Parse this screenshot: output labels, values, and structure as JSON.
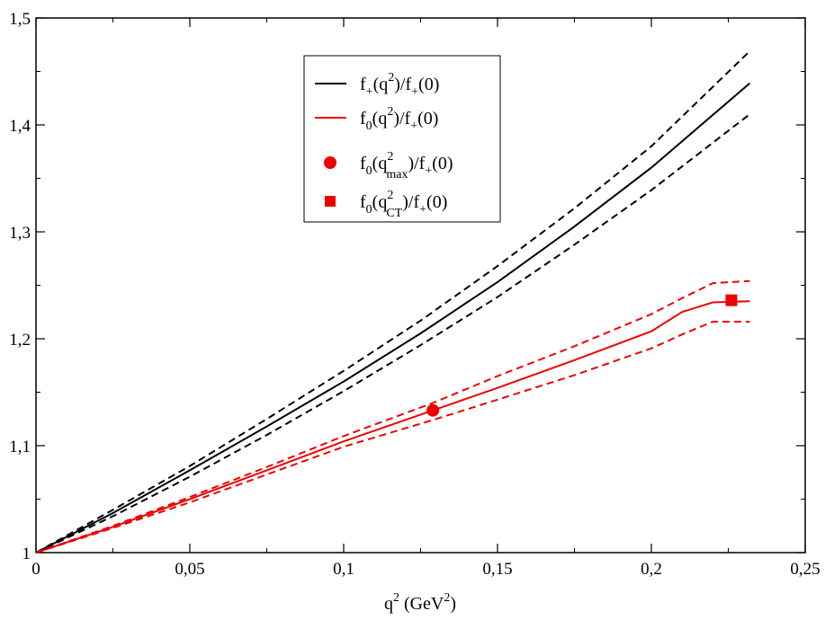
{
  "chart_data": {
    "type": "line",
    "title": "",
    "xlabel": {
      "base": "q",
      "sup": "2",
      "mid": " (GeV",
      "sup2": "2",
      "end": ")"
    },
    "ylabel": "",
    "xlim": [
      0,
      0.25
    ],
    "ylim": [
      1,
      1.5
    ],
    "xticks": [
      0,
      0.05,
      0.1,
      0.15,
      0.2,
      0.25
    ],
    "xtick_labels": [
      "0",
      "0,05",
      "0,1",
      "0,15",
      "0,2",
      "0,25"
    ],
    "yticks": [
      1,
      1.1,
      1.2,
      1.3,
      1.4,
      1.5
    ],
    "ytick_labels": [
      "1",
      "1,1",
      "1,2",
      "1,3",
      "1,4",
      "1,5"
    ],
    "x_minor_ticks": [
      0.025,
      0.075,
      0.125,
      0.175,
      0.225
    ],
    "y_minor_ticks": [
      1.05,
      1.15,
      1.25,
      1.35,
      1.45
    ],
    "legend_position": "top-center",
    "series": [
      {
        "name": "f+ central",
        "color": "#000000",
        "dash": "none",
        "x": [
          0,
          0.025,
          0.05,
          0.075,
          0.1,
          0.125,
          0.15,
          0.175,
          0.2,
          0.232
        ],
        "y": [
          1,
          1.037,
          1.077,
          1.118,
          1.16,
          1.205,
          1.253,
          1.305,
          1.36,
          1.439
        ]
      },
      {
        "name": "f+ upper",
        "color": "#000000",
        "dash": "dashed",
        "x": [
          0,
          0.025,
          0.05,
          0.075,
          0.1,
          0.125,
          0.15,
          0.175,
          0.2,
          0.232
        ],
        "y": [
          1,
          1.04,
          1.081,
          1.125,
          1.17,
          1.217,
          1.268,
          1.322,
          1.38,
          1.469
        ]
      },
      {
        "name": "f+ lower",
        "color": "#000000",
        "dash": "dashed",
        "x": [
          0,
          0.025,
          0.05,
          0.075,
          0.1,
          0.125,
          0.15,
          0.175,
          0.2,
          0.232
        ],
        "y": [
          1,
          1.034,
          1.071,
          1.11,
          1.151,
          1.194,
          1.239,
          1.288,
          1.339,
          1.41
        ]
      },
      {
        "name": "f0 central",
        "color": "#ee0000",
        "dash": "none",
        "x": [
          0,
          0.025,
          0.05,
          0.075,
          0.1,
          0.129,
          0.15,
          0.175,
          0.2,
          0.21,
          0.22,
          0.232
        ],
        "y": [
          1,
          1.024,
          1.05,
          1.077,
          1.104,
          1.133,
          1.154,
          1.18,
          1.207,
          1.225,
          1.234,
          1.235
        ]
      },
      {
        "name": "f0 upper",
        "color": "#ee0000",
        "dash": "dashed",
        "x": [
          0,
          0.025,
          0.05,
          0.075,
          0.1,
          0.129,
          0.15,
          0.175,
          0.2,
          0.21,
          0.22,
          0.232
        ],
        "y": [
          1,
          1.025,
          1.052,
          1.08,
          1.109,
          1.14,
          1.165,
          1.193,
          1.223,
          1.238,
          1.252,
          1.254
        ]
      },
      {
        "name": "f0 lower",
        "color": "#ee0000",
        "dash": "dashed",
        "x": [
          0,
          0.025,
          0.05,
          0.075,
          0.1,
          0.129,
          0.15,
          0.175,
          0.2,
          0.21,
          0.22,
          0.232
        ],
        "y": [
          1,
          1.023,
          1.047,
          1.073,
          1.099,
          1.124,
          1.143,
          1.166,
          1.191,
          1.204,
          1.216,
          1.216
        ]
      }
    ],
    "points": [
      {
        "name": "f0(q2max)/f+(0)",
        "marker": "circle",
        "color": "#ee0000",
        "x": 0.129,
        "y": 1.133
      },
      {
        "name": "f0(q2CT)/f+(0)",
        "marker": "square",
        "color": "#ee0000",
        "x": 0.226,
        "y": 1.236
      }
    ],
    "legend": [
      {
        "symbol": "line",
        "color": "#000000",
        "pre": "f",
        "sub1": "+",
        "mid": "(q",
        "sup": "2",
        "sub2": "",
        "post": ")/f",
        "sub3": "+",
        "end": "(0)"
      },
      {
        "symbol": "line",
        "color": "#ee0000",
        "pre": "f",
        "sub1": "0",
        "mid": "(q",
        "sup": "2",
        "sub2": "",
        "post": ")/f",
        "sub3": "+",
        "end": "(0)"
      },
      {
        "symbol": "circle",
        "color": "#ee0000",
        "pre": "f",
        "sub1": "0",
        "mid": "(q",
        "sup": "2",
        "sub2": "max",
        "post": ")/f",
        "sub3": "+",
        "end": "(0)"
      },
      {
        "symbol": "square",
        "color": "#ee0000",
        "pre": "f",
        "sub1": "0",
        "mid": "(q",
        "sup": "2",
        "sub2": "CT",
        "post": ")/f",
        "sub3": "+",
        "end": "(0)"
      }
    ]
  }
}
